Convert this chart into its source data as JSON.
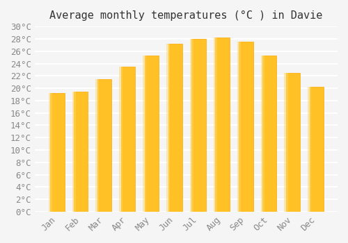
{
  "title": "Average monthly temperatures (°C ) in Davie",
  "months": [
    "Jan",
    "Feb",
    "Mar",
    "Apr",
    "May",
    "Jun",
    "Jul",
    "Aug",
    "Sep",
    "Oct",
    "Nov",
    "Dec"
  ],
  "values": [
    19.2,
    19.5,
    21.5,
    23.5,
    25.3,
    27.2,
    28.0,
    28.2,
    27.5,
    25.3,
    22.5,
    20.2
  ],
  "bar_color_main": "#FFC125",
  "bar_color_edge": "#FFA500",
  "background_color": "#f5f5f5",
  "grid_color": "#ffffff",
  "ylim": [
    0,
    30
  ],
  "yticks": [
    0,
    2,
    4,
    6,
    8,
    10,
    12,
    14,
    16,
    18,
    20,
    22,
    24,
    26,
    28,
    30
  ],
  "title_fontsize": 11,
  "tick_fontsize": 9,
  "font_color": "#888888"
}
